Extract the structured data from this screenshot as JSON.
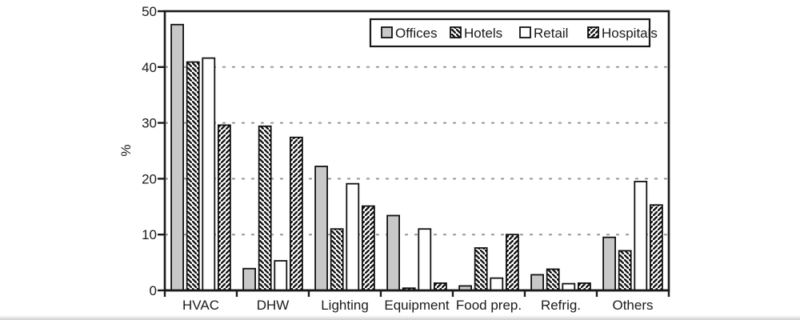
{
  "figure": {
    "background": "#ffffff",
    "axis_color": "#1a1a1a",
    "text_color": "#1a1a1a",
    "grid_color": "#999999",
    "bar_gray": "#c8c8c8"
  },
  "chart_data": {
    "type": "bar",
    "title": "",
    "xlabel": "",
    "ylabel": "%",
    "ylim": [
      0,
      50
    ],
    "y_ticks": [
      0,
      10,
      20,
      30,
      40,
      50
    ],
    "gridlines": {
      "values": [
        10,
        20,
        30,
        40
      ],
      "style": "dashed",
      "color": "#999999"
    },
    "grid_on": true,
    "legend_position": "top-right-inside",
    "categories": [
      "HVAC",
      "DHW",
      "Lighting",
      "Equipment",
      "Food prep.",
      "Refrig.",
      "Others"
    ],
    "series": [
      {
        "name": "Offices",
        "fill": "solid-gray",
        "values": [
          47.6,
          3.9,
          22.2,
          13.4,
          0.8,
          2.8,
          9.5
        ]
      },
      {
        "name": "Hotels",
        "fill": "hatch-backslash",
        "values": [
          40.9,
          29.4,
          11.0,
          0.4,
          7.6,
          3.8,
          7.1
        ]
      },
      {
        "name": "Retail",
        "fill": "solid-white",
        "values": [
          41.6,
          5.3,
          19.1,
          11.0,
          2.2,
          1.2,
          19.5
        ]
      },
      {
        "name": "Hospitals",
        "fill": "hatch-forwardslash",
        "values": [
          29.6,
          27.4,
          15.1,
          1.3,
          10.0,
          1.3,
          15.3
        ]
      }
    ]
  }
}
